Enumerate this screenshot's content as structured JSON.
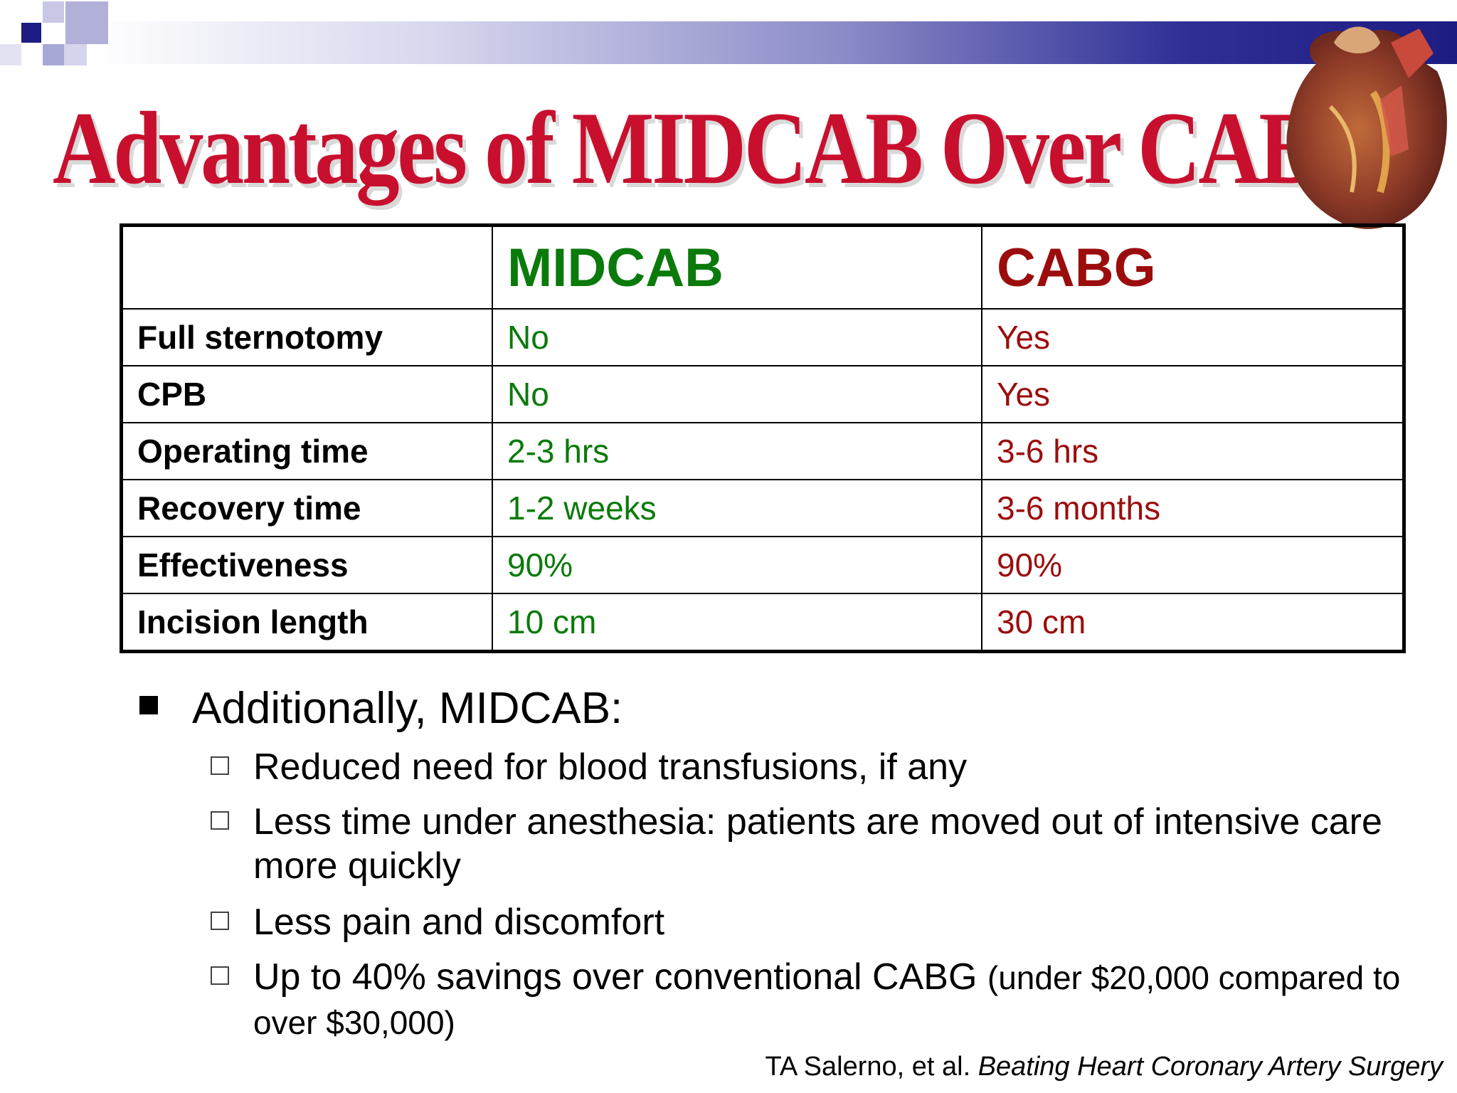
{
  "title": "Advantages of MIDCAB Over CABG",
  "colors": {
    "title": "#c8102e",
    "midcab": "#0a7a0a",
    "cabg": "#9b0d0d",
    "band": "#1c1c82"
  },
  "table": {
    "headers": [
      "",
      "MIDCAB",
      "CABG"
    ],
    "rows": [
      {
        "label": "Full sternotomy",
        "midcab": "No",
        "cabg": "Yes"
      },
      {
        "label": "CPB",
        "midcab": "No",
        "cabg": "Yes"
      },
      {
        "label": "Operating time",
        "midcab": "2-3 hrs",
        "cabg": "3-6 hrs"
      },
      {
        "label": "Recovery time",
        "midcab": "1-2 weeks",
        "cabg": "3-6 months"
      },
      {
        "label": "Effectiveness",
        "midcab": "90%",
        "cabg": "90%"
      },
      {
        "label": "Incision length",
        "midcab": "10 cm",
        "cabg": "30 cm"
      }
    ]
  },
  "bullets": {
    "main": "Additionally, MIDCAB:",
    "subs": [
      {
        "text": "Reduced need for blood transfusions, if any",
        "small": ""
      },
      {
        "text": "Less time under anesthesia: patients are moved out of intensive care more quickly",
        "small": ""
      },
      {
        "text": "Less pain and discomfort",
        "small": ""
      },
      {
        "text": "Up to 40% savings over conventional CABG ",
        "small": "(under $20,000 compared to over $30,000)"
      }
    ]
  },
  "citation": {
    "authors": "TA Salerno, et al. ",
    "work": "Beating Heart Coronary Artery Surgery"
  },
  "icons": {
    "decoration": "heart-illustration-icon"
  }
}
